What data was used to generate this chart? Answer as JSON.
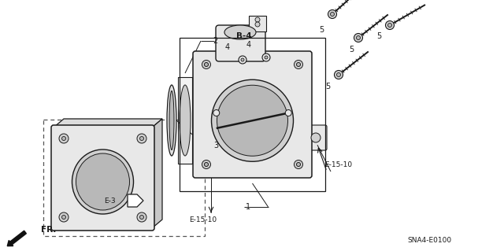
{
  "bg_color": "#ffffff",
  "fig_width": 6.4,
  "fig_height": 3.19,
  "dpi": 100,
  "lc": "#1a1a1a",
  "lc_gray": "#555555",
  "face_light": "#e8e8e8",
  "face_mid": "#d0d0d0",
  "face_dark": "#b8b8b8",
  "labels": {
    "sna": "SNA4-E0100",
    "fr": "FR.",
    "e3": "E-3",
    "e1510a": "E-15-10",
    "e1510b": "E-15-10",
    "b4": "B-4",
    "n1": "1",
    "n2": "2",
    "n3": "3",
    "n4a": "4",
    "n4b": "4",
    "n5a": "5",
    "n5b": "5",
    "n5c": "5",
    "n5d": "5"
  }
}
